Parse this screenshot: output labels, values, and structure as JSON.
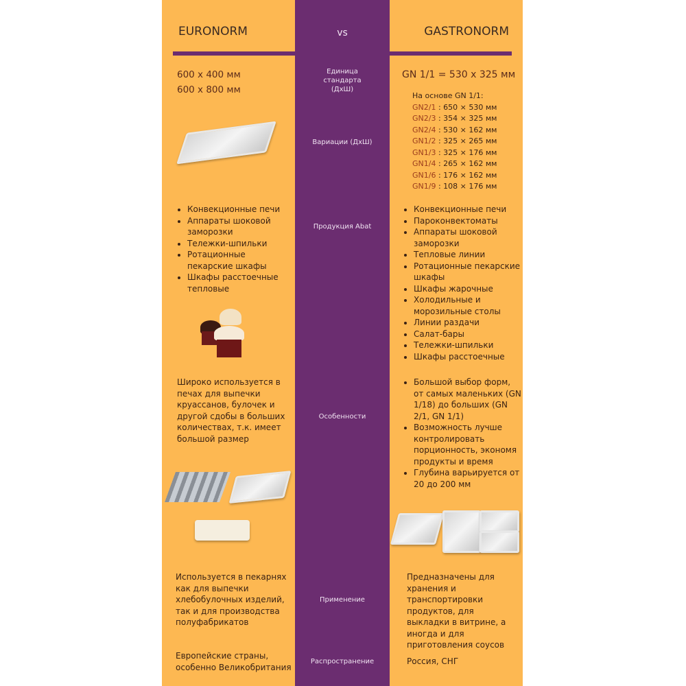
{
  "colors": {
    "orange": "#FDB852",
    "purple": "#6B2D70",
    "accent_text": "#9b3b1c"
  },
  "header": {
    "left": "EURONORM",
    "middle": "vs",
    "right": "GASTRONORM"
  },
  "rows": {
    "unit": {
      "label": "Единица стандарта (ДхШ)",
      "left": [
        "600 x 400 мм",
        "600 x 800 мм"
      ],
      "right": "GN 1/1 = 530 x 325 мм"
    },
    "variations": {
      "label": "Вариации (ДхШ)",
      "right_title": "На основе GN 1/1:",
      "right_items": [
        {
          "code": "GN2/1",
          "size": " : 650 × 530 мм"
        },
        {
          "code": "GN2/3",
          "size": " : 354 × 325 мм"
        },
        {
          "code": "GN2/4",
          "size": " : 530 × 162 мм"
        },
        {
          "code": "GN1/2",
          "size": " : 325 × 265 мм"
        },
        {
          "code": "GN1/3",
          "size": " : 325 × 176 мм"
        },
        {
          "code": "GN1/4",
          "size": " : 265 × 162 мм"
        },
        {
          "code": "GN1/6",
          "size": " : 176 × 162 мм"
        },
        {
          "code": "GN1/9",
          "size": " : 108 × 176 мм"
        }
      ]
    },
    "products": {
      "label": "Продукция Abat",
      "left": [
        "Конвекционные печи",
        "Аппараты шоковой заморозки",
        "Тележки-шпильки",
        "Ротационные пекарские шкафы",
        "Шкафы расстоечные тепловые"
      ],
      "right": [
        "Конвекционные печи",
        "Пароконвектоматы",
        "Аппараты шоковой заморозки",
        "Тепловые линии",
        "Ротационные пекарские шкафы",
        "Шкафы жарочные",
        "Холодильные и морозильные столы",
        "Линии раздачи",
        "Салат-бары",
        "Тележки-шпильки",
        "Шкафы расстоечные"
      ]
    },
    "features": {
      "label": "Особенности",
      "left": "Широко используется в печах для выпечки круассанов, булочек и другой сдобы в больших количествах, т.к. имеет большой размер",
      "right": [
        "Большой выбор форм, от самых маленьких (GN 1/18) до больших (GN 2/1, GN 1/1)",
        "Возможность лучше контролировать порционность, экономя продукты и время",
        "Глубина варьируется от 20 до 200 мм"
      ]
    },
    "usage": {
      "label": "Применение",
      "left": "Используется в пекарнях как для выпечки хлебобулочных изделий, так и для производства полуфабрикатов",
      "right": "Предназначены для хранения и транспортировки продуктов, для выкладки в витрине, а иногда и для приготовления соусов"
    },
    "spread": {
      "label": "Распространение",
      "left": "Европейские страны, особенно Великобритания",
      "right": "Россия, СНГ"
    }
  }
}
